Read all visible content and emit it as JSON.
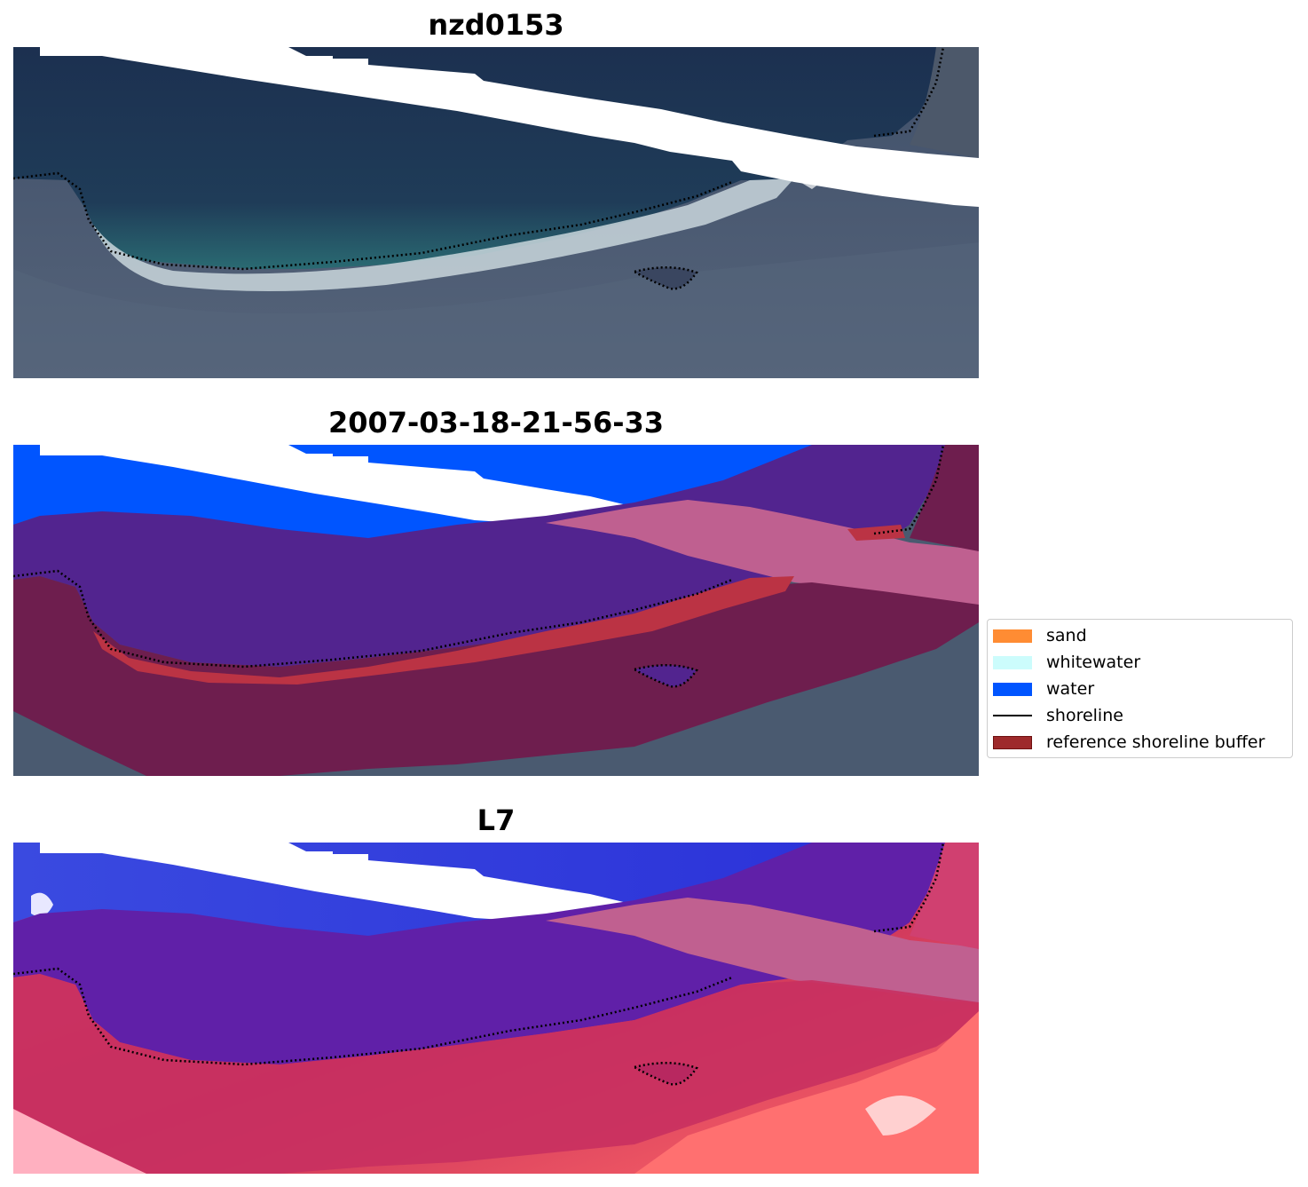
{
  "panels": [
    {
      "title": "nzd0153"
    },
    {
      "title": "2007-03-18-21-56-33"
    },
    {
      "title": "L7"
    }
  ],
  "legend": {
    "items": [
      {
        "label": "sand",
        "color": "#ff8c33",
        "kind": "patch"
      },
      {
        "label": "whitewater",
        "color": "#ccfcfc",
        "kind": "patch"
      },
      {
        "label": "water",
        "color": "#0055ff",
        "kind": "patch"
      },
      {
        "label": "shoreline",
        "color": "#000000",
        "kind": "line"
      },
      {
        "label": "reference shoreline buffer",
        "color": "#9e2a2b",
        "kind": "patch"
      }
    ]
  },
  "colors": {
    "ocean_dark": "#1f3454",
    "land_gray": "#4a5a70",
    "water_class": "#0055ff",
    "buffer": "#6e1e4e",
    "buffer_edge": "#bb3344",
    "nodata_stripe": "#ffffff",
    "pink_band": "#bf6090",
    "purple_overlay": "#52248f"
  }
}
